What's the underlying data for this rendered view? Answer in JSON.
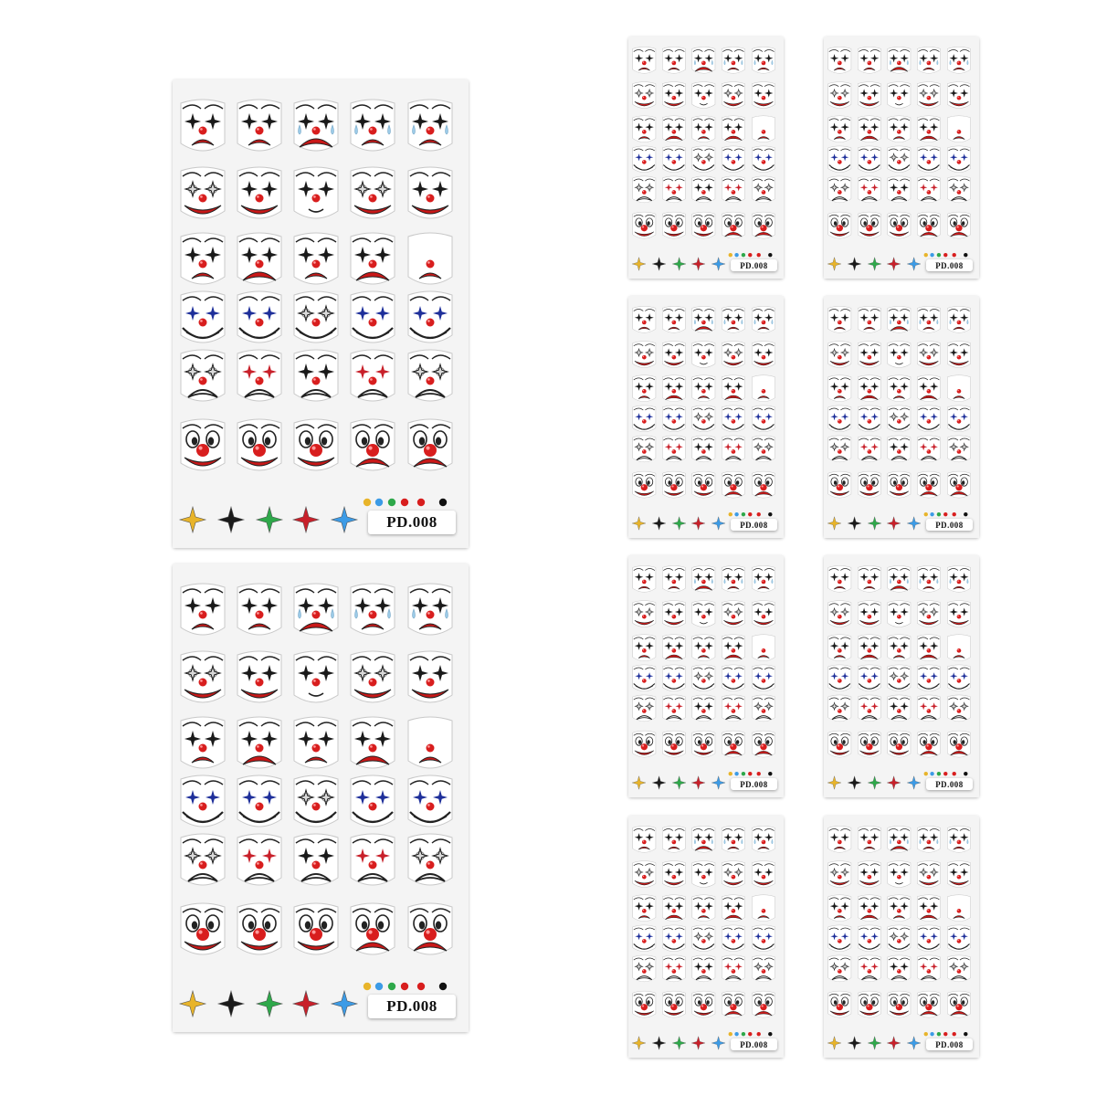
{
  "product": {
    "code_label": "PD.008"
  },
  "colors": {
    "nose_red": "#d81e1e",
    "mouth_red": "#c91818",
    "star_black": "#1a1a1a",
    "star_blue": "#1e2f9a",
    "star_gold": "#e8b42a",
    "star_green": "#2ea84a",
    "star_red": "#c8202a",
    "star_sky": "#3c9be6",
    "tear_blue": "#9ccbe8",
    "sheet_bg": "#f4f4f4",
    "outline": "#222222"
  },
  "sheet_rows": [
    {
      "row": 1,
      "faces": [
        {
          "eyes": "black-star",
          "mouth": "sad",
          "tears": false
        },
        {
          "eyes": "black-star",
          "mouth": "sad",
          "tears": false
        },
        {
          "eyes": "black-star",
          "mouth": "sad-big",
          "tears": true
        },
        {
          "eyes": "black-star",
          "mouth": "sad",
          "tears": true
        },
        {
          "eyes": "black-star",
          "mouth": "sad",
          "tears": true
        }
      ]
    },
    {
      "row": 2,
      "faces": [
        {
          "eyes": "silver",
          "mouth": "smile",
          "tears": false
        },
        {
          "eyes": "black-star",
          "mouth": "nose-smile",
          "tears": false
        },
        {
          "eyes": "black-star",
          "mouth": "small",
          "tears": false
        },
        {
          "eyes": "silver",
          "mouth": "smile",
          "tears": false
        },
        {
          "eyes": "black-star",
          "mouth": "smile",
          "tears": false
        }
      ]
    },
    {
      "row": 3,
      "faces": [
        {
          "eyes": "black-star",
          "mouth": "sad",
          "tears": false
        },
        {
          "eyes": "black-star",
          "mouth": "sad-big",
          "tears": false
        },
        {
          "eyes": "black-star",
          "mouth": "sad",
          "tears": false
        },
        {
          "eyes": "black-star",
          "mouth": "sad-big",
          "tears": false
        },
        {
          "eyes": "none",
          "mouth": "sad",
          "tears": false
        }
      ]
    },
    {
      "row": 4,
      "faces": [
        {
          "eyes": "blue-star",
          "mouth": "grin",
          "tears": false
        },
        {
          "eyes": "blue-star",
          "mouth": "grin",
          "tears": false
        },
        {
          "eyes": "silver",
          "mouth": "grin",
          "tears": false
        },
        {
          "eyes": "blue-star",
          "mouth": "grin",
          "tears": false
        },
        {
          "eyes": "blue-star",
          "mouth": "grin",
          "tears": false
        }
      ]
    },
    {
      "row": 5,
      "faces": [
        {
          "eyes": "silver",
          "mouth": "frown-outline",
          "tears": false
        },
        {
          "eyes": "red-star",
          "mouth": "frown-outline",
          "tears": false
        },
        {
          "eyes": "black-star",
          "mouth": "frown-outline",
          "tears": false
        },
        {
          "eyes": "red-star",
          "mouth": "frown-outline",
          "tears": false
        },
        {
          "eyes": "silver",
          "mouth": "frown-outline",
          "tears": false
        }
      ]
    },
    {
      "row": 6,
      "faces": [
        {
          "eyes": "cartoon",
          "mouth": "smile",
          "tears": false
        },
        {
          "eyes": "cartoon",
          "mouth": "smile",
          "tears": false
        },
        {
          "eyes": "cartoon",
          "mouth": "smile",
          "tears": false
        },
        {
          "eyes": "cartoon",
          "mouth": "sad-big",
          "tears": false
        },
        {
          "eyes": "cartoon",
          "mouth": "sad-big",
          "tears": false
        }
      ]
    }
  ],
  "bottom_row": {
    "stars": [
      "star_gold",
      "star_black",
      "star_green",
      "star_red",
      "star_sky"
    ],
    "dots": [
      "#e8b42a",
      "#3c9be6",
      "#2ea84a",
      "#d81e1e",
      "#d81e1e",
      "#111111"
    ]
  }
}
